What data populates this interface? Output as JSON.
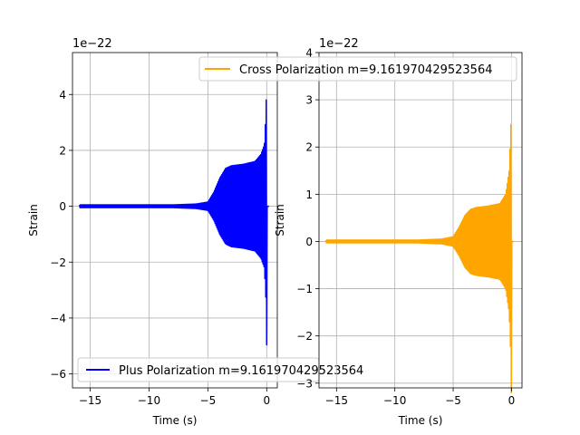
{
  "chart_data": [
    {
      "type": "line",
      "title": "",
      "xlabel": "Time (s)",
      "ylabel": "Strain",
      "offset_text": "1e−22",
      "xlim": [
        -16.5,
        0.9
      ],
      "ylim": [
        -6.5,
        5.5
      ],
      "xticks": [
        -15,
        -10,
        -5,
        0
      ],
      "xtick_labels": [
        "−15",
        "−10",
        "−5",
        "0"
      ],
      "yticks": [
        -6,
        -4,
        -2,
        0,
        2,
        4
      ],
      "ytick_labels": [
        "−6",
        "−4",
        "−2",
        "0",
        "2",
        "4"
      ],
      "grid": true,
      "legend": "lower-left",
      "series": [
        {
          "name": "Plus Polarization m=9.161970429523564",
          "color": "#0000ff",
          "x_start": -15.9,
          "x_end": 0.2,
          "envelope": {
            "t": [
              -15.9,
              -8.0,
              -6.0,
              -5.0,
              -4.5,
              -4.0,
              -3.5,
              -3.0,
              -2.0,
              -1.0,
              -0.5,
              -0.2,
              -0.05,
              0.0,
              0.02,
              0.2
            ],
            "amp": [
              0.05,
              0.05,
              0.08,
              0.15,
              0.5,
              1.0,
              1.35,
              1.45,
              1.5,
              1.6,
              1.85,
              2.2,
              3.5,
              5.0,
              0.0,
              0.0
            ]
          }
        }
      ]
    },
    {
      "type": "line",
      "title": "",
      "xlabel": "Time (s)",
      "ylabel": "Strain",
      "offset_text": "1e−22",
      "xlim": [
        -16.5,
        0.9
      ],
      "ylim": [
        -3.1,
        4.0
      ],
      "xticks": [
        -15,
        -10,
        -5,
        0
      ],
      "xtick_labels": [
        "−15",
        "−10",
        "−5",
        "0"
      ],
      "yticks": [
        -3,
        -2,
        -1,
        0,
        1,
        2,
        3,
        4
      ],
      "ytick_labels": [
        "−3",
        "−2",
        "−1",
        "0",
        "1",
        "2",
        "3",
        "4"
      ],
      "grid": true,
      "legend": "upper-right",
      "series": [
        {
          "name": "Cross Polarization m=9.161970429523564",
          "color": "#ffa500",
          "x_start": -15.9,
          "x_end": 0.2,
          "envelope": {
            "t": [
              -15.9,
              -8.0,
              -6.0,
              -5.0,
              -4.5,
              -4.0,
              -3.5,
              -3.0,
              -2.0,
              -1.0,
              -0.5,
              -0.2,
              -0.05,
              0.0,
              0.02,
              0.2
            ],
            "amp": [
              0.03,
              0.03,
              0.05,
              0.1,
              0.3,
              0.55,
              0.68,
              0.72,
              0.75,
              0.8,
              1.0,
              1.5,
              2.5,
              3.5,
              0.0,
              0.0
            ]
          }
        }
      ]
    }
  ]
}
